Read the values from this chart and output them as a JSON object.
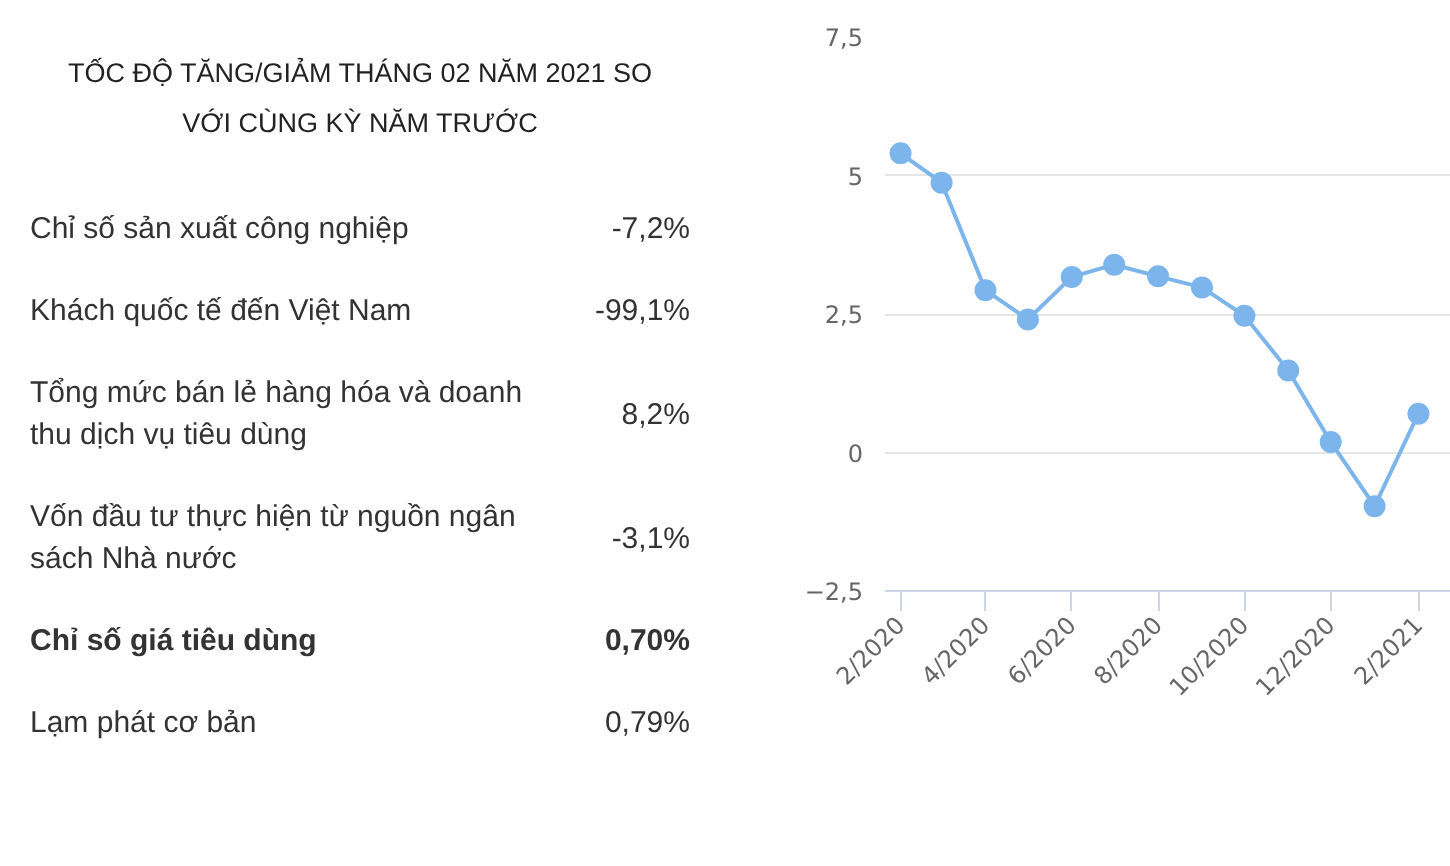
{
  "chart_data": [
    {
      "type": "other",
      "title": "TỐC ĐỘ TĂNG/GIẢM THÁNG 02 NĂM 2021 SO VỚI CÙNG KỲ NĂM TRƯỚC",
      "annotations": [
        "Chỉ số sản xuất công nghiệp",
        "-7,2%",
        "Khách quốc tế đến Việt Nam",
        "-99,1%",
        "Tổng mức bán lẻ hàng hóa và doanh thu dịch vụ tiêu dùng",
        "8,2%",
        "Vốn đầu tư thực hiện từ nguồn ngân sách Nhà nước",
        "-3,1%",
        "Chỉ số giá tiêu dùng",
        "0,70%",
        "Lạm phát cơ bản",
        "0,79%"
      ]
    },
    {
      "type": "line",
      "x": [
        "2020-02",
        "2020-03",
        "2020-04",
        "2020-05",
        "2020-06",
        "2020-07",
        "2020-08",
        "2020-09",
        "2020-10",
        "2020-11",
        "2020-12",
        "2021-01",
        "2021-02"
      ],
      "series": [
        {
          "color": "#7cb5ec",
          "values": [
            5.4,
            4.87,
            2.93,
            2.4,
            3.17,
            3.39,
            3.18,
            2.98,
            2.47,
            1.48,
            0.19,
            -0.97,
            0.7
          ]
        }
      ],
      "xlim": [
        "2020-01-21",
        "2021-02-24"
      ],
      "xticks": [
        {
          "value": "2020-02",
          "label": "2/2020"
        },
        {
          "value": "2020-04",
          "label": "4/2020"
        },
        {
          "value": "2020-06",
          "label": "6/2020"
        },
        {
          "value": "2020-08",
          "label": "8/2020"
        },
        {
          "value": "2020-10",
          "label": "10/2020"
        },
        {
          "value": "2020-12",
          "label": "12/2020"
        },
        {
          "value": "2021-02",
          "label": "2/2021"
        }
      ],
      "ylim": [
        -2.5,
        7.5
      ],
      "yticks": [
        {
          "value": -2.5,
          "label": "−2,5"
        },
        0,
        {
          "value": 2.5,
          "label": "2,5"
        },
        5,
        {
          "value": 7.5,
          "label": "7,5"
        }
      ],
      "grid": "y",
      "marker": "circle",
      "line_style": "solid"
    }
  ]
}
